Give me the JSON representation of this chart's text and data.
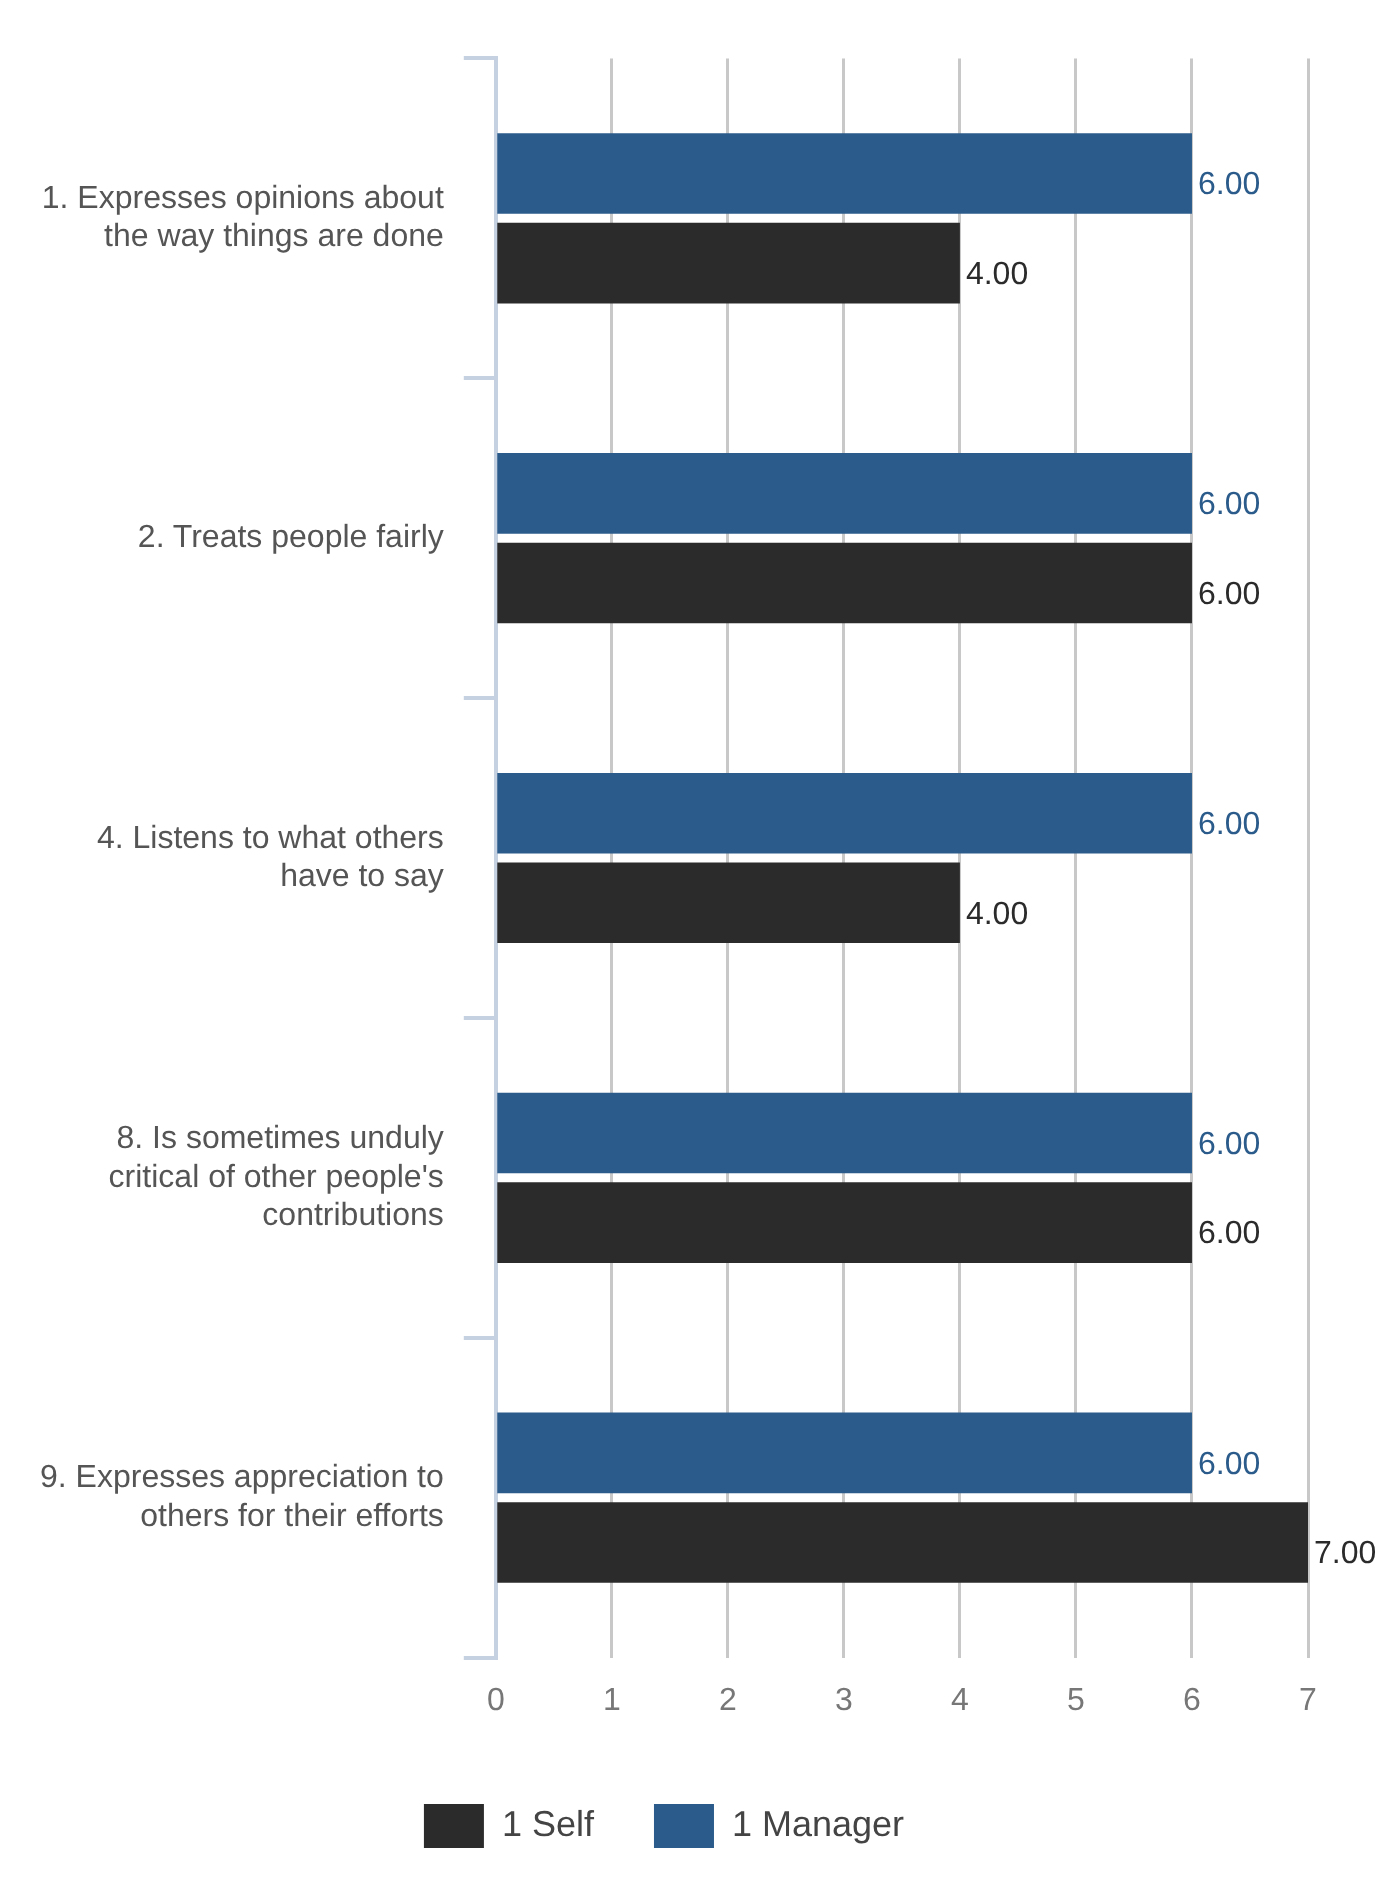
{
  "chart_data": {
    "type": "bar",
    "orientation": "horizontal",
    "categories": [
      "1. Expresses opinions about the way things are done",
      "2. Treats people fairly",
      "4. Listens to what others have to say",
      "8. Is sometimes unduly critical of other people's contributions",
      "9. Expresses appreciation to others for their efforts"
    ],
    "series": [
      {
        "name": "1 Self",
        "color": "#2b2b2b",
        "values": [
          4,
          6,
          4,
          6,
          7
        ],
        "value_labels": [
          "4.00",
          "6.00",
          "4.00",
          "6.00",
          "7.00"
        ]
      },
      {
        "name": "1 Manager",
        "color": "#2a5b8a",
        "values": [
          6,
          6,
          6,
          6,
          6
        ],
        "value_labels": [
          "6.00",
          "6.00",
          "6.00",
          "6.00",
          "6.00"
        ]
      }
    ],
    "xlim": [
      0,
      7
    ],
    "xticks": [
      0,
      1,
      2,
      3,
      4,
      5,
      6,
      7
    ],
    "grid": "x",
    "legend": "bottom"
  }
}
